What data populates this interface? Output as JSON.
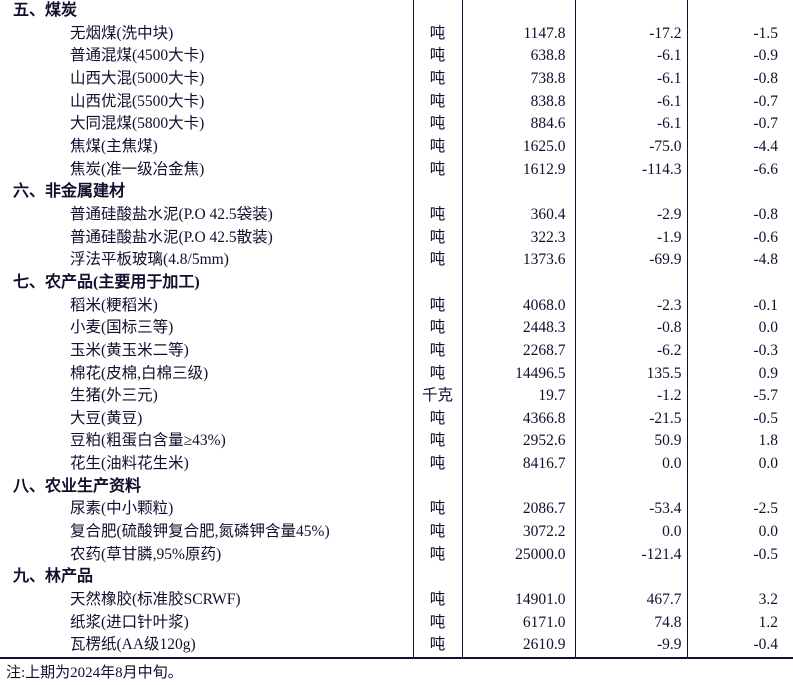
{
  "table": {
    "sections": [
      {
        "title": "五、煤炭",
        "rows": [
          {
            "name": "无烟煤(洗中块)",
            "unit": "吨",
            "price": "1147.8",
            "change": "-17.2",
            "pct": "-1.5"
          },
          {
            "name": "普通混煤(4500大卡)",
            "unit": "吨",
            "price": "638.8",
            "change": "-6.1",
            "pct": "-0.9"
          },
          {
            "name": "山西大混(5000大卡)",
            "unit": "吨",
            "price": "738.8",
            "change": "-6.1",
            "pct": "-0.8"
          },
          {
            "name": "山西优混(5500大卡)",
            "unit": "吨",
            "price": "838.8",
            "change": "-6.1",
            "pct": "-0.7"
          },
          {
            "name": "大同混煤(5800大卡)",
            "unit": "吨",
            "price": "884.6",
            "change": "-6.1",
            "pct": "-0.7"
          },
          {
            "name": "焦煤(主焦煤)",
            "unit": "吨",
            "price": "1625.0",
            "change": "-75.0",
            "pct": "-4.4"
          },
          {
            "name": "焦炭(准一级冶金焦)",
            "unit": "吨",
            "price": "1612.9",
            "change": "-114.3",
            "pct": "-6.6"
          }
        ]
      },
      {
        "title": "六、非金属建材",
        "rows": [
          {
            "name": "普通硅酸盐水泥(P.O 42.5袋装)",
            "unit": "吨",
            "price": "360.4",
            "change": "-2.9",
            "pct": "-0.8"
          },
          {
            "name": "普通硅酸盐水泥(P.O 42.5散装)",
            "unit": "吨",
            "price": "322.3",
            "change": "-1.9",
            "pct": "-0.6"
          },
          {
            "name": "浮法平板玻璃(4.8/5mm)",
            "unit": "吨",
            "price": "1373.6",
            "change": "-69.9",
            "pct": "-4.8"
          }
        ]
      },
      {
        "title": "七、农产品(主要用于加工)",
        "rows": [
          {
            "name": "稻米(粳稻米)",
            "unit": "吨",
            "price": "4068.0",
            "change": "-2.3",
            "pct": "-0.1"
          },
          {
            "name": "小麦(国标三等)",
            "unit": "吨",
            "price": "2448.3",
            "change": "-0.8",
            "pct": "0.0"
          },
          {
            "name": "玉米(黄玉米二等)",
            "unit": "吨",
            "price": "2268.7",
            "change": "-6.2",
            "pct": "-0.3"
          },
          {
            "name": "棉花(皮棉,白棉三级)",
            "unit": "吨",
            "price": "14496.5",
            "change": "135.5",
            "pct": "0.9"
          },
          {
            "name": "生猪(外三元)",
            "unit": "千克",
            "price": "19.7",
            "change": "-1.2",
            "pct": "-5.7"
          },
          {
            "name": "大豆(黄豆)",
            "unit": "吨",
            "price": "4366.8",
            "change": "-21.5",
            "pct": "-0.5"
          },
          {
            "name": "豆粕(粗蛋白含量≥43%)",
            "unit": "吨",
            "price": "2952.6",
            "change": "50.9",
            "pct": "1.8"
          },
          {
            "name": "花生(油料花生米)",
            "unit": "吨",
            "price": "8416.7",
            "change": "0.0",
            "pct": "0.0"
          }
        ]
      },
      {
        "title": "八、农业生产资料",
        "rows": [
          {
            "name": "尿素(中小颗粒)",
            "unit": "吨",
            "price": "2086.7",
            "change": "-53.4",
            "pct": "-2.5"
          },
          {
            "name": "复合肥(硫酸钾复合肥,氮磷钾含量45%)",
            "unit": "吨",
            "price": "3072.2",
            "change": "0.0",
            "pct": "0.0"
          },
          {
            "name": "农药(草甘膦,95%原药)",
            "unit": "吨",
            "price": "25000.0",
            "change": "-121.4",
            "pct": "-0.5"
          }
        ]
      },
      {
        "title": "九、林产品",
        "rows": [
          {
            "name": "天然橡胶(标准胶SCRWF)",
            "unit": "吨",
            "price": "14901.0",
            "change": "467.7",
            "pct": "3.2"
          },
          {
            "name": "纸浆(进口针叶浆)",
            "unit": "吨",
            "price": "6171.0",
            "change": "74.8",
            "pct": "1.2"
          },
          {
            "name": "瓦楞纸(AA级120g)",
            "unit": "吨",
            "price": "2610.9",
            "change": "-9.9",
            "pct": "-0.4"
          }
        ]
      }
    ]
  },
  "note": "注:上期为2024年8月中旬。"
}
